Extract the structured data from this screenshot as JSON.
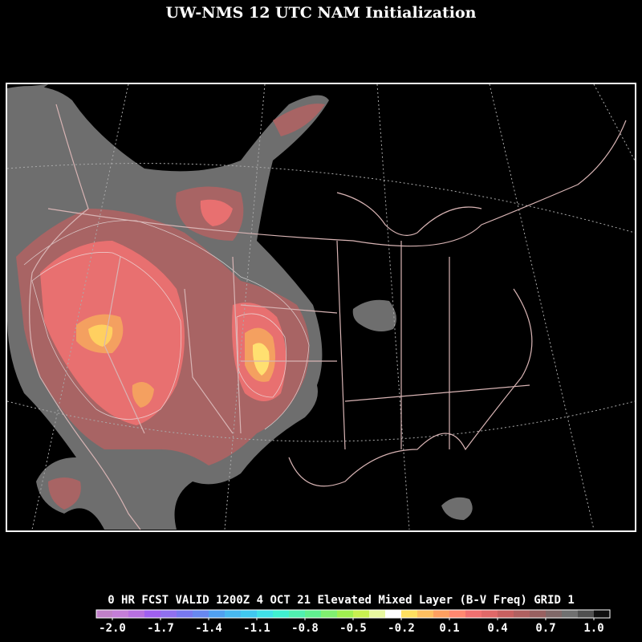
{
  "title": "UW-NMS 12 UTC NAM Initialization",
  "caption": "0 HR FCST VALID 1200Z  4 OCT 21 Elevated Mixed Layer (B-V Freq) GRID 1",
  "colorbar": {
    "colors": [
      "#c080c8",
      "#c47ed8",
      "#b870e0",
      "#a060f0",
      "#9070f0",
      "#7878f0",
      "#6888f0",
      "#50a0f0",
      "#48b8f0",
      "#40c8f0",
      "#40e0e8",
      "#40f0d0",
      "#50f0b0",
      "#60f090",
      "#80f070",
      "#a0f050",
      "#c8f050",
      "#e8f8a0",
      "#ffffff",
      "#ffe060",
      "#ffc060",
      "#ffa060",
      "#ff8870",
      "#f07070",
      "#e06868",
      "#c86060",
      "#b06060",
      "#986060",
      "#806868",
      "#707070",
      "#505050",
      "#101010"
    ],
    "labels": [
      "-2.0",
      "-1.7",
      "-1.4",
      "-1.1",
      "-0.8",
      "-0.5",
      "-0.2",
      "0.1",
      "0.4",
      "0.7",
      "1.0"
    ]
  }
}
